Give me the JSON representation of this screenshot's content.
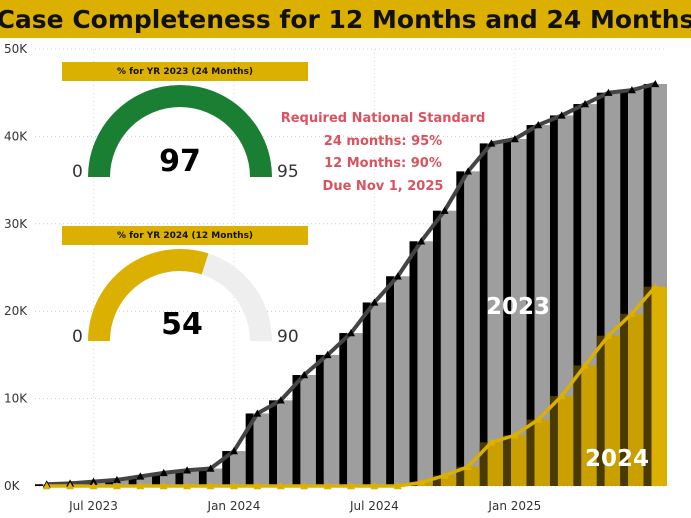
{
  "title": "Case Completeness for 12 Months and 24 Months",
  "gauges": [
    {
      "header": "% for YR 2023 (24 Months)",
      "value": 97,
      "value_label": "97",
      "min": 0,
      "min_label": "0",
      "max": 95,
      "max_label": "95",
      "fill": 1.0,
      "color": "#1b7f33"
    },
    {
      "header": "% for YR 2024 (12 Months)",
      "value": 54,
      "value_label": "54",
      "min": 0,
      "min_label": "0",
      "max": 90,
      "max_label": "90",
      "fill": 0.6,
      "color": "#dcb000"
    }
  ],
  "requirement": {
    "line1": "Required National Standard",
    "line2": "24 months: 95%",
    "line3": "12 Months: 90%",
    "line4": "Due Nov 1, 2025"
  },
  "series_labels": {
    "s2023": "2023",
    "s2024": "2024"
  },
  "chart_data": {
    "type": "bar",
    "title": "Case Completeness for 12 Months and 24 Months",
    "x_labels": [
      "Jul 2023",
      "Jan 2024",
      "Jul 2024",
      "Jan 2025"
    ],
    "ylim": [
      0,
      50000
    ],
    "y_ticks": [
      0,
      10000,
      20000,
      30000,
      40000,
      50000
    ],
    "y_tick_labels": [
      "0K",
      "10K",
      "20K",
      "30K",
      "40K",
      "50K"
    ],
    "grid": true,
    "categories": [
      "2023-05",
      "2023-06",
      "2023-07",
      "2023-08",
      "2023-09",
      "2023-10",
      "2023-11",
      "2023-12",
      "2024-01",
      "2024-02",
      "2024-03",
      "2024-04",
      "2024-05",
      "2024-06",
      "2024-07",
      "2024-08",
      "2024-09",
      "2024-10",
      "2024-11",
      "2024-12",
      "2025-01",
      "2025-02",
      "2025-03",
      "2025-04",
      "2025-05",
      "2025-06",
      "2025-07"
    ],
    "series": [
      {
        "name": "2023",
        "color": "#000000",
        "values": [
          200,
          300,
          500,
          700,
          1100,
          1500,
          1800,
          2000,
          4000,
          8300,
          9800,
          12700,
          15000,
          17500,
          21000,
          24000,
          28000,
          31500,
          36000,
          39200,
          39700,
          41300,
          42400,
          43700,
          45000,
          45300,
          46000
        ]
      },
      {
        "name": "2024",
        "color": "#dcb000",
        "values": [
          0,
          0,
          0,
          0,
          0,
          0,
          0,
          0,
          0,
          0,
          0,
          0,
          0,
          0,
          0,
          0,
          400,
          1200,
          2200,
          5000,
          5800,
          7600,
          10300,
          13800,
          17200,
          19700,
          22800
        ]
      }
    ]
  }
}
